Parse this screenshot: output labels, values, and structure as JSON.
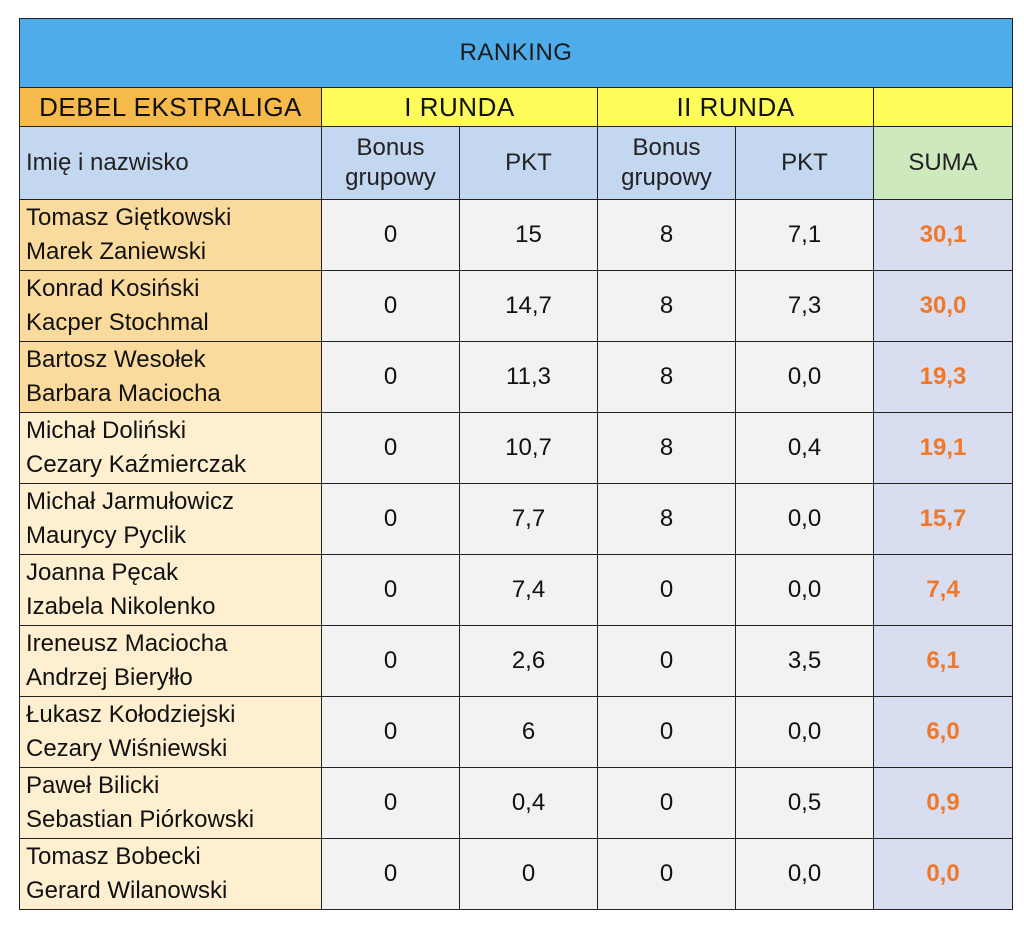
{
  "title": "RANKING",
  "header": {
    "division": "DEBEL EKSTRALIGA",
    "round1": "I RUNDA",
    "round2": "II RUNDA",
    "name_col": "Imię i nazwisko",
    "bonus_line1": "Bonus",
    "bonus_line2": "grupowy",
    "pkt": "PKT",
    "suma": "SUMA"
  },
  "rows": [
    {
      "player1": "Tomasz Giętkowski",
      "player2": "Marek Zaniewski",
      "r1_bonus": "0",
      "r1_pkt": "15",
      "r2_bonus": "8",
      "r2_pkt": "7,1",
      "suma": "30,1"
    },
    {
      "player1": "Konrad Kosiński",
      "player2": "Kacper Stochmal",
      "r1_bonus": "0",
      "r1_pkt": "14,7",
      "r2_bonus": "8",
      "r2_pkt": "7,3",
      "suma": "30,0"
    },
    {
      "player1": "Bartosz Wesołek",
      "player2": "Barbara Maciocha",
      "r1_bonus": "0",
      "r1_pkt": "11,3",
      "r2_bonus": "8",
      "r2_pkt": "0,0",
      "suma": "19,3"
    },
    {
      "player1": "Michał Doliński",
      "player2": "Cezary Kaźmierczak",
      "r1_bonus": "0",
      "r1_pkt": "10,7",
      "r2_bonus": "8",
      "r2_pkt": "0,4",
      "suma": "19,1"
    },
    {
      "player1": "Michał Jarmułowicz",
      "player2": "Maurycy Pyclik",
      "r1_bonus": "0",
      "r1_pkt": "7,7",
      "r2_bonus": "8",
      "r2_pkt": "0,0",
      "suma": "15,7"
    },
    {
      "player1": "Joanna Pęcak",
      "player2": "Izabela Nikolenko",
      "r1_bonus": "0",
      "r1_pkt": "7,4",
      "r2_bonus": "0",
      "r2_pkt": "0,0",
      "suma": "7,4"
    },
    {
      "player1": "Ireneusz Maciocha",
      "player2": "Andrzej Bieryłło",
      "r1_bonus": "0",
      "r1_pkt": "2,6",
      "r2_bonus": "0",
      "r2_pkt": "3,5",
      "suma": "6,1"
    },
    {
      "player1": "Łukasz Kołodziejski",
      "player2": "Cezary Wiśniewski",
      "r1_bonus": "0",
      "r1_pkt": "6",
      "r2_bonus": "0",
      "r2_pkt": "0,0",
      "suma": "6,0"
    },
    {
      "player1": "Paweł Bilicki",
      "player2": "Sebastian Piórkowski",
      "r1_bonus": "0",
      "r1_pkt": "0,4",
      "r2_bonus": "0",
      "r2_pkt": "0,5",
      "suma": "0,9"
    },
    {
      "player1": "Tomasz Bobecki",
      "player2": "Gerard Wilanowski",
      "r1_bonus": "0",
      "r1_pkt": "0",
      "r2_bonus": "0",
      "r2_pkt": "0,0",
      "suma": "0,0"
    }
  ],
  "colors": {
    "title_bg": "#4facea",
    "round_bg": "#fdfc5a",
    "division_bg": "#f5ba4a",
    "subheader_bg": "#c4d7f0",
    "suma_header_bg": "#cfe9bf",
    "suma_text": "#f0782a"
  }
}
